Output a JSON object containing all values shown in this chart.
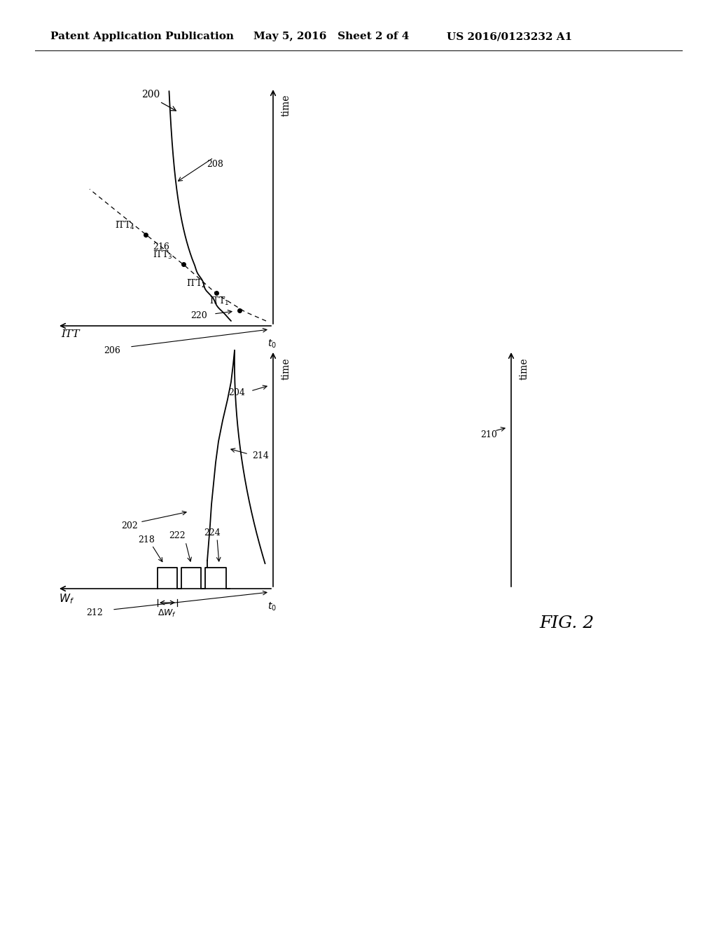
{
  "bg_color": "#ffffff",
  "header_left": "Patent Application Publication",
  "header_mid": "May 5, 2016   Sheet 2 of 4",
  "header_right": "US 2016/0123232 A1"
}
